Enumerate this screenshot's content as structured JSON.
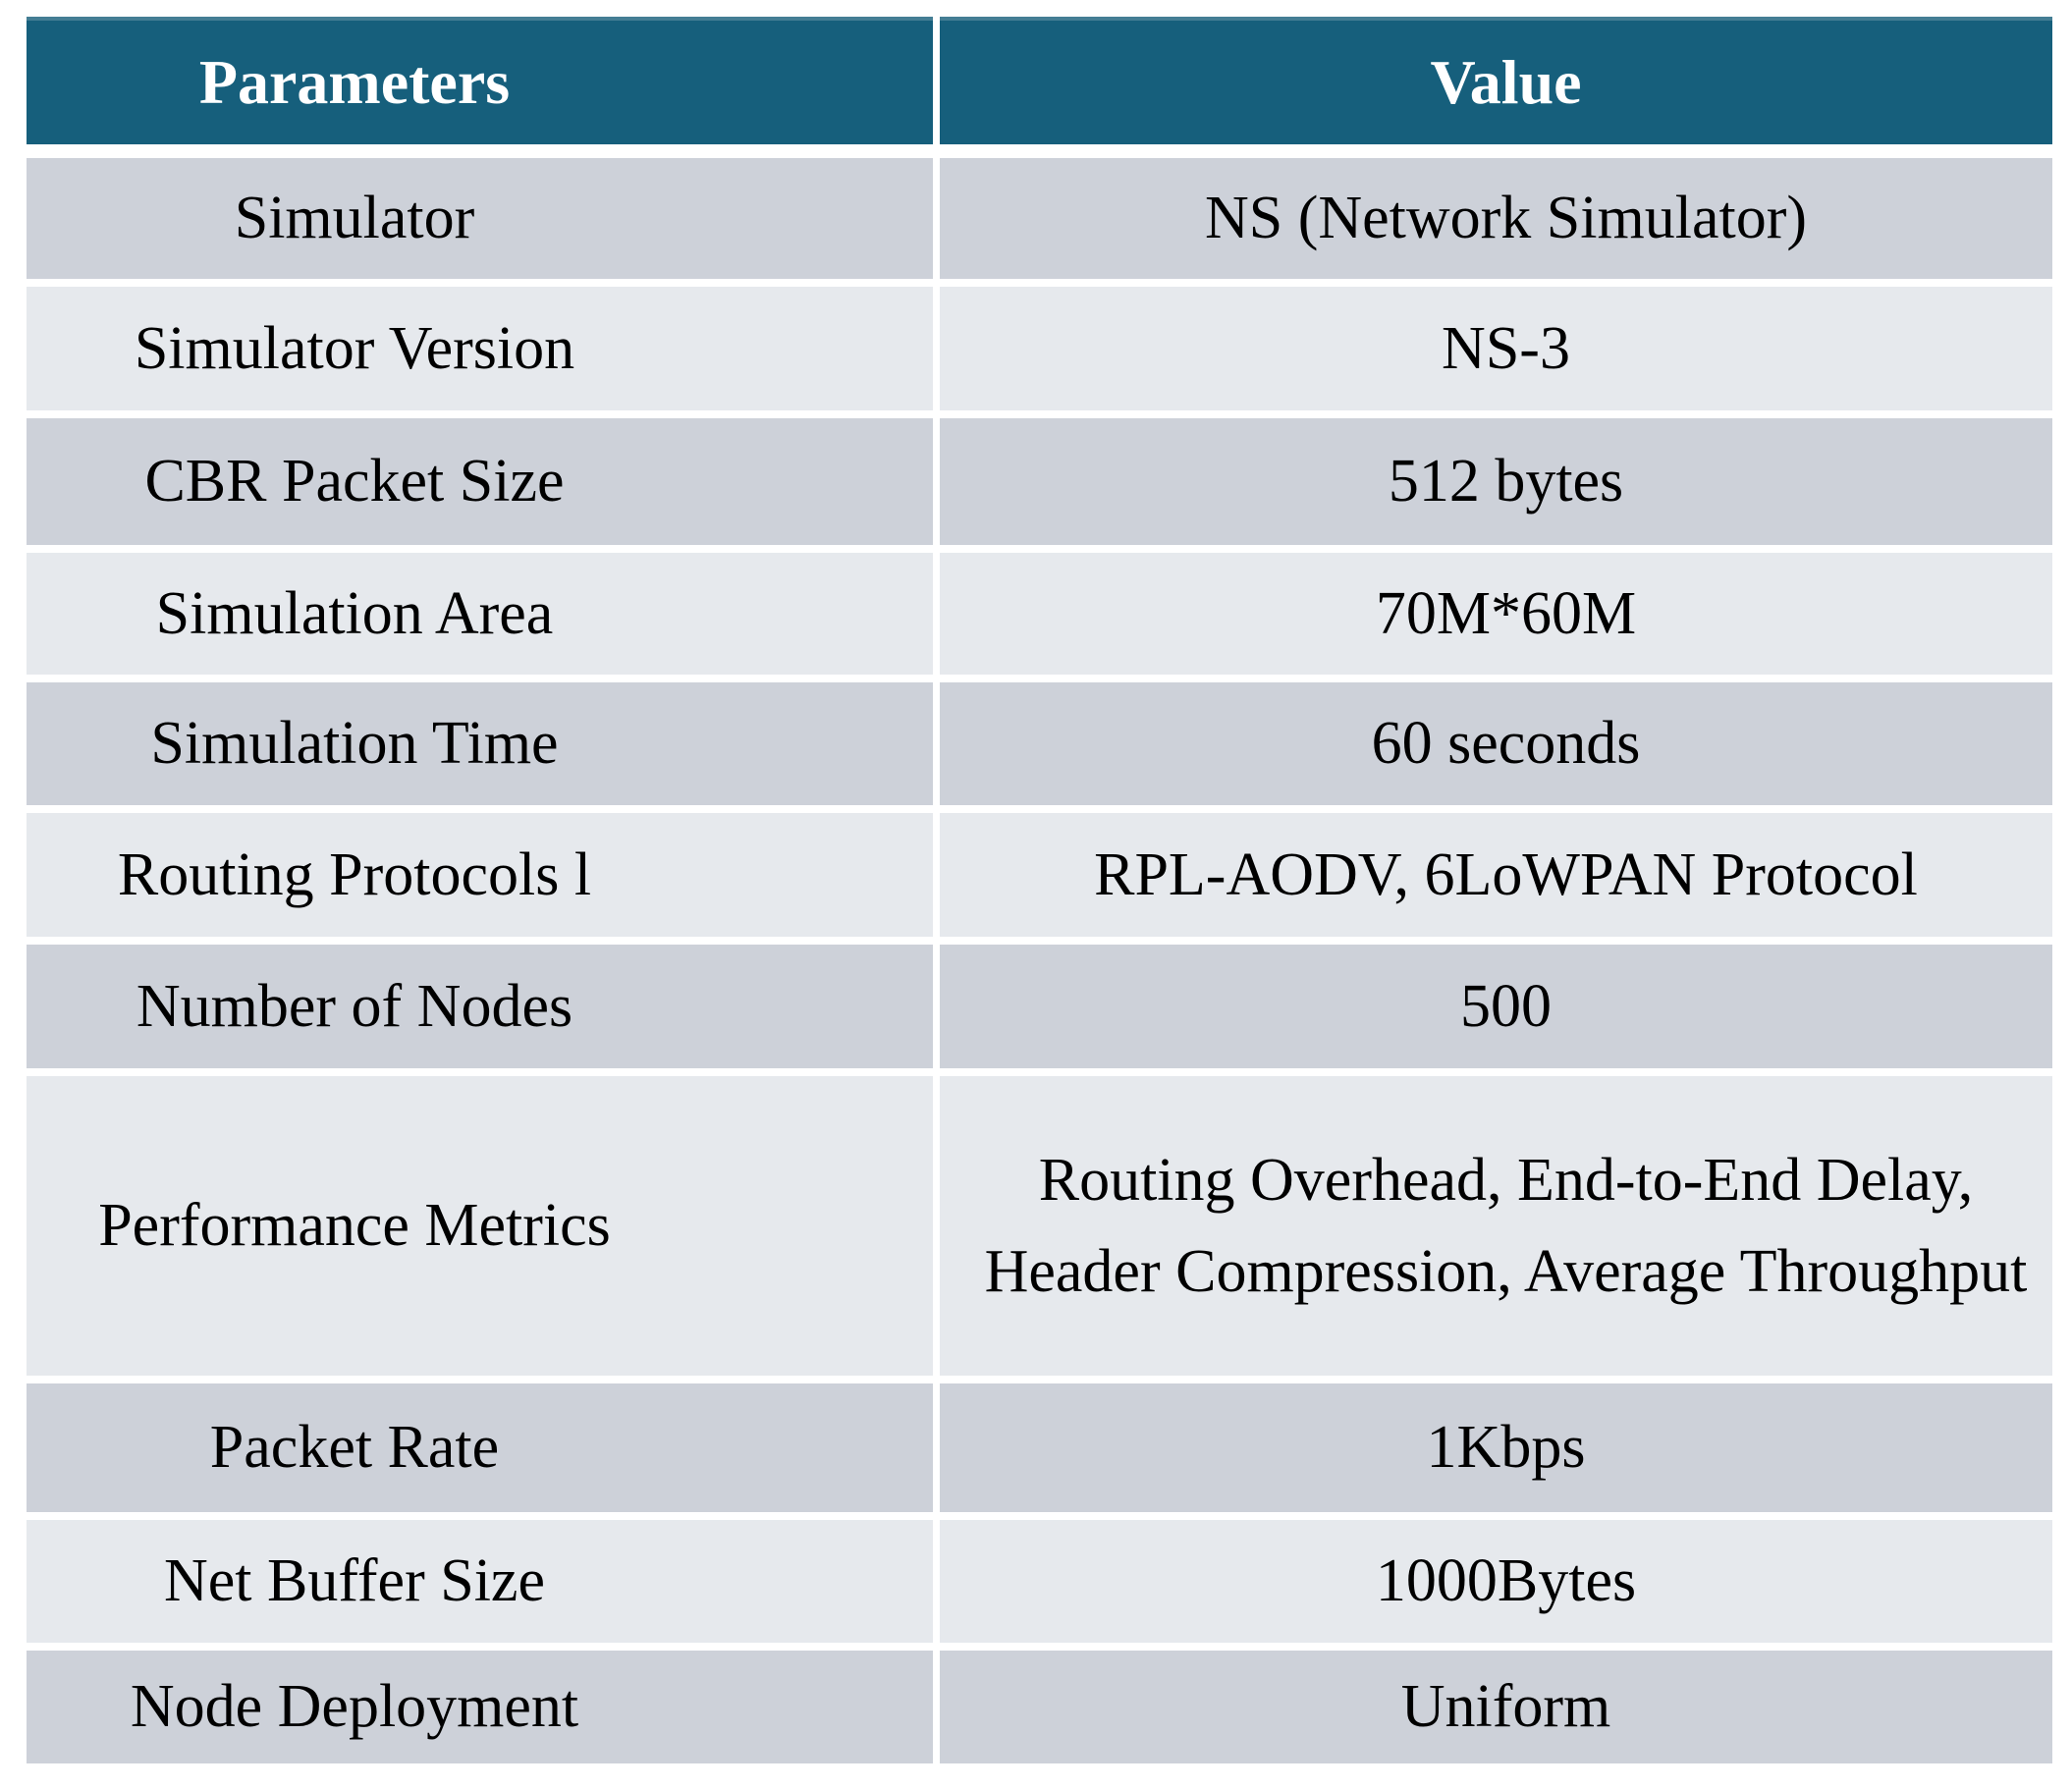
{
  "table": {
    "headers": {
      "param": "Parameters",
      "value": "Value"
    },
    "rows": [
      {
        "param": "Simulator",
        "value": "NS (Network Simulator)"
      },
      {
        "param": "Simulator Version",
        "value": "NS-3"
      },
      {
        "param": "CBR Packet Size",
        "value": "512 bytes"
      },
      {
        "param": "Simulation Area",
        "value": "70M*60M"
      },
      {
        "param": "Simulation Time",
        "value": "60 seconds"
      },
      {
        "param": "Routing Protocols l",
        "value": "RPL-AODV, 6LoWPAN Protocol"
      },
      {
        "param": "Number of Nodes",
        "value": "500"
      },
      {
        "param": "Performance Metrics",
        "value": "Routing Overhead, End-to-End Delay, Header Compression, Average Throughput"
      },
      {
        "param": "Packet Rate",
        "value": "1Kbps"
      },
      {
        "param": "Net Buffer Size",
        "value": "1000Bytes"
      },
      {
        "param": "Node Deployment",
        "value": "Uniform"
      }
    ],
    "colors": {
      "header_bg": "#165F7C",
      "header_top_edge": "#447E94",
      "header_text": "#FFFFFF",
      "row_dark_bg": "#CDD1D9",
      "row_light_bg": "#E6E9ED",
      "row_text": "#000000",
      "gap": "#FFFFFF"
    }
  }
}
